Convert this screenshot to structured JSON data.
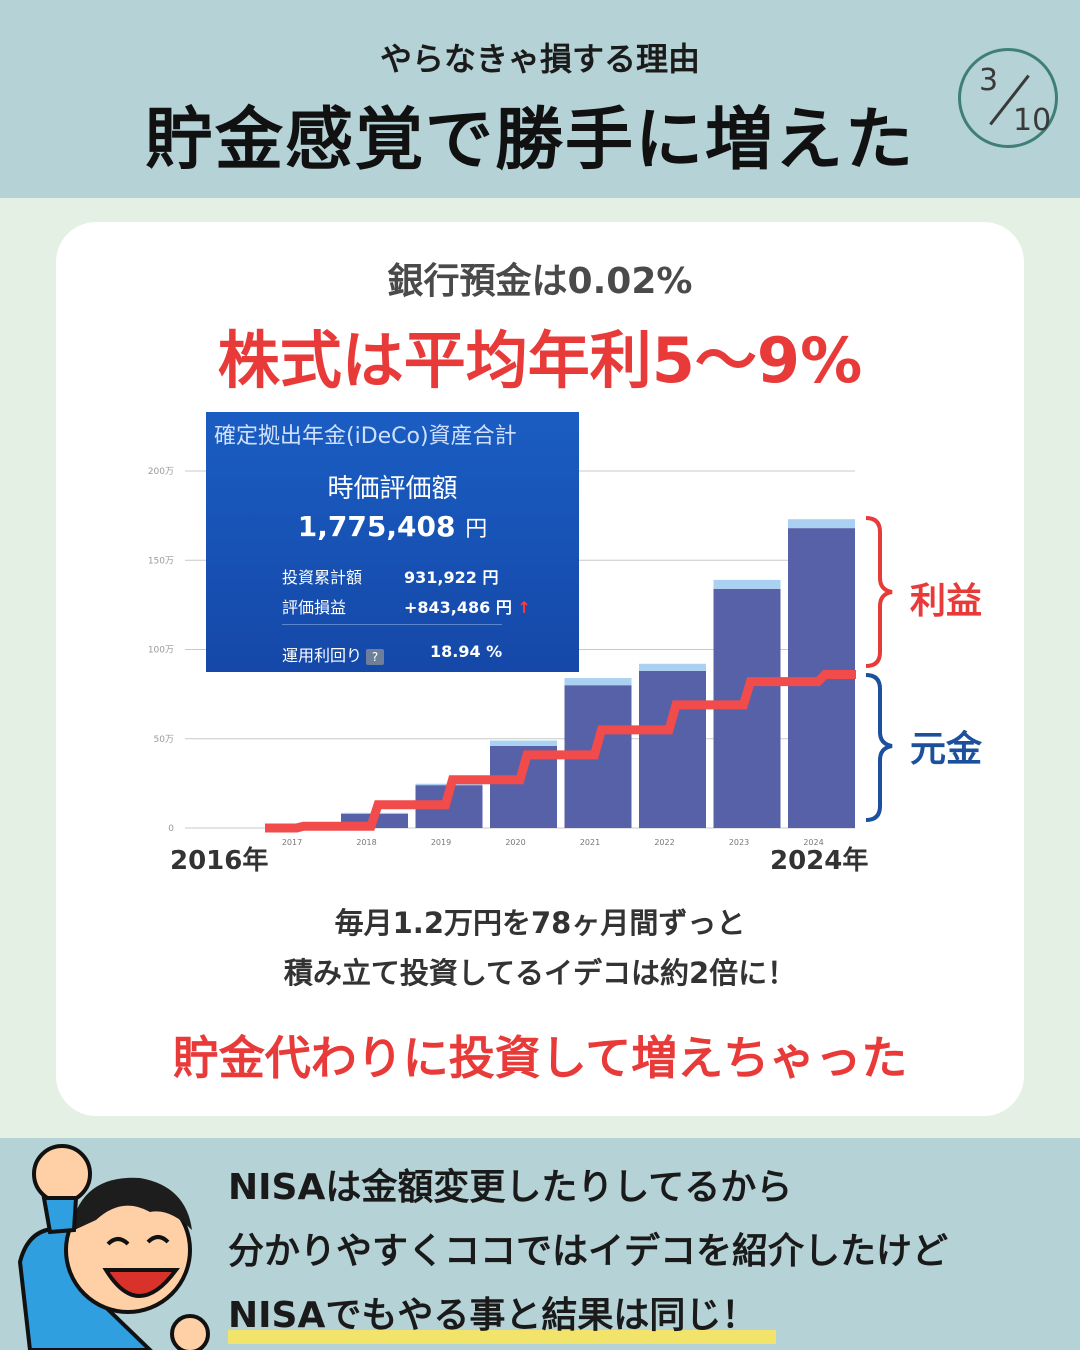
{
  "header": {
    "subtitle": "やらなきゃ損する理由",
    "title": "貯金感覚で勝手に増えた",
    "page_current": "3",
    "page_total": "10"
  },
  "card": {
    "bank_rate": "銀行預金は0.02%",
    "stock_rate": "株式は平均年利5〜9%",
    "description_line1": "毎月1.2万円を78ヶ月間ずっと",
    "description_line2": "積み立て投資してるイデコは約2倍に！",
    "result": "貯金代わりに投資して増えちゃった"
  },
  "ideco_box": {
    "title": "確定拠出年金(iDeCo)資産合計",
    "heading": "時価評価額",
    "value": "1,775,408",
    "unit": "円",
    "contribution_label": "投資累計額",
    "contribution_value": "931,922 円",
    "gain_label": "評価損益",
    "gain_value": "+843,486 円",
    "gain_arrow": "↑",
    "return_label": "運用利回り",
    "help_icon": "?",
    "return_value": "18.94 %"
  },
  "labels": {
    "profit": "利益",
    "principal": "元金",
    "start_year": "2016年",
    "end_year": "2024年"
  },
  "bottom": {
    "line1": "NISAは金額変更したりしてるから",
    "line2": "分かりやすくココではイデコを紹介したけど",
    "line3": "NISAでもやる事と結果は同じ！"
  },
  "chart_data": {
    "type": "bar",
    "categories": [
      "2017",
      "2018",
      "2019",
      "2020",
      "2021",
      "2022",
      "2023",
      "2024"
    ],
    "series": [
      {
        "values": [
          0.5,
          8,
          24,
          46,
          80,
          88,
          134,
          168
        ]
      },
      {
        "values": [
          0.2,
          0.5,
          0.8,
          3,
          4,
          4,
          5,
          5
        ]
      }
    ],
    "principal_line": {
      "x": [
        "2016",
        "2017",
        "2018",
        "2019",
        "2020",
        "2021",
        "2022",
        "2023",
        "2024"
      ],
      "values": [
        0,
        1,
        13,
        27,
        41,
        55,
        69,
        82,
        86
      ]
    },
    "yticks": [
      "0",
      "50万",
      "100万",
      "150万",
      "200万"
    ],
    "ylim": [
      0,
      200
    ],
    "colors": {
      "bar": "#5761a8",
      "bar_top": "#aad1f2",
      "line": "#f24b4b",
      "grid": "#c9c9c9"
    }
  },
  "colors": {
    "red": "#e93a3a",
    "blue": "#1c4f9c",
    "header_bg": "#b5d2d6"
  }
}
